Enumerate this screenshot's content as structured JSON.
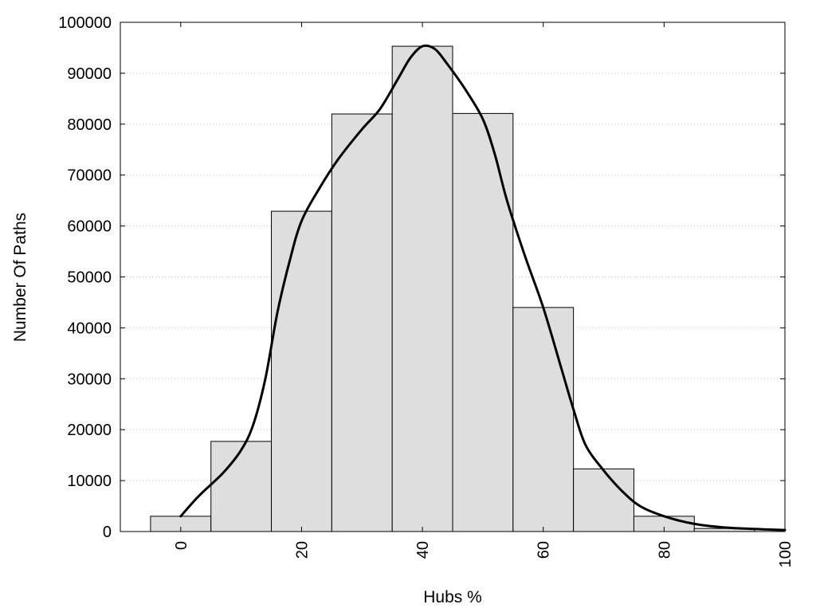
{
  "chart_data": {
    "type": "bar",
    "xlabel": "Hubs %",
    "ylabel": "Number Of Paths",
    "xlim": [
      -10,
      100
    ],
    "ylim": [
      0,
      100000
    ],
    "xticks": [
      0,
      20,
      40,
      60,
      80,
      100
    ],
    "yticks": [
      0,
      10000,
      20000,
      30000,
      40000,
      50000,
      60000,
      70000,
      80000,
      90000,
      100000
    ],
    "grid": "horizontal-dotted",
    "bin_width": 10,
    "bins": [
      {
        "x": 0,
        "value": 3000
      },
      {
        "x": 10,
        "value": 17700
      },
      {
        "x": 20,
        "value": 62900
      },
      {
        "x": 30,
        "value": 82000
      },
      {
        "x": 40,
        "value": 95300
      },
      {
        "x": 50,
        "value": 82100
      },
      {
        "x": 60,
        "value": 44000
      },
      {
        "x": 70,
        "value": 12300
      },
      {
        "x": 80,
        "value": 3000
      },
      {
        "x": 90,
        "value": 600
      }
    ],
    "series": [
      {
        "type": "line",
        "points": [
          [
            0,
            3000
          ],
          [
            3,
            7000
          ],
          [
            7,
            11500
          ],
          [
            10,
            16000
          ],
          [
            12,
            21000
          ],
          [
            14,
            30000
          ],
          [
            16,
            43000
          ],
          [
            18,
            53000
          ],
          [
            20,
            61000
          ],
          [
            23,
            67500
          ],
          [
            26,
            73000
          ],
          [
            30,
            79000
          ],
          [
            33,
            83000
          ],
          [
            36,
            89000
          ],
          [
            38,
            93000
          ],
          [
            40,
            95300
          ],
          [
            42,
            94800
          ],
          [
            44,
            92000
          ],
          [
            47,
            87000
          ],
          [
            50,
            81000
          ],
          [
            52,
            74000
          ],
          [
            54,
            65000
          ],
          [
            57,
            54000
          ],
          [
            60,
            44000
          ],
          [
            63,
            32000
          ],
          [
            65,
            24000
          ],
          [
            67,
            17000
          ],
          [
            70,
            12000
          ],
          [
            73,
            8000
          ],
          [
            76,
            5000
          ],
          [
            80,
            3000
          ],
          [
            85,
            1500
          ],
          [
            90,
            800
          ],
          [
            95,
            500
          ],
          [
            100,
            300
          ]
        ]
      }
    ],
    "colors": {
      "bar_fill": "#dedede",
      "bar_stroke": "#000000",
      "line": "#000000",
      "grid": "#c8c8c8"
    }
  }
}
